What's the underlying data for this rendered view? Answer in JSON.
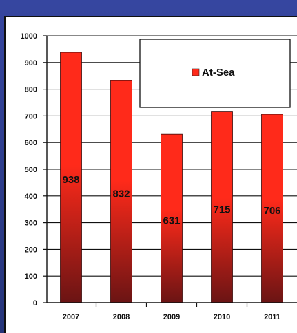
{
  "chart_data": {
    "type": "bar",
    "categories": [
      "2007",
      "2008",
      "2009",
      "2010",
      "2011"
    ],
    "series": [
      {
        "name": "At-Sea",
        "values": [
          938,
          832,
          631,
          715,
          706
        ]
      }
    ],
    "data_labels": [
      "938",
      "832",
      "631",
      "715",
      "706"
    ],
    "ylim": [
      0,
      1000
    ],
    "yticks": [
      "0",
      "100",
      "200",
      "300",
      "400",
      "500",
      "600",
      "700",
      "800",
      "900",
      "1000"
    ],
    "grid": true,
    "legend": {
      "position": "top-right",
      "label": "At-Sea"
    },
    "colors": {
      "bar_top": "#ff2a1a",
      "bar_bottom": "#6a1414",
      "frame": "#2f3f86"
    }
  }
}
